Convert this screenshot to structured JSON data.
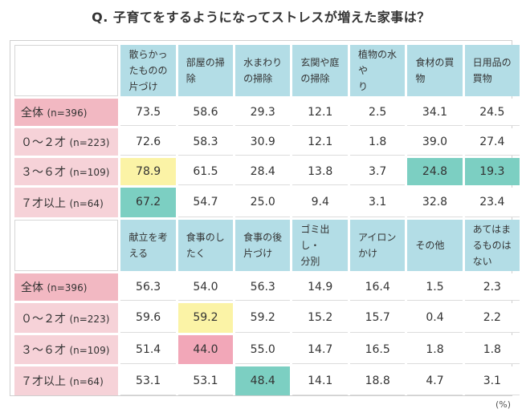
{
  "title": "Q. 子育てをするようになってストレスが増えた家事は？",
  "unit": "(%)",
  "chart_data": {
    "type": "table",
    "row_labels": [
      {
        "label": "全体",
        "n": "(n=396)"
      },
      {
        "label": "０～２才",
        "n": "(n=223)"
      },
      {
        "label": "３～６才",
        "n": "(n=109)"
      },
      {
        "label": "７才以上",
        "n": "(n=64)"
      }
    ],
    "tables": [
      {
        "headers": [
          [
            "散らかっ",
            "たものの",
            "片づけ"
          ],
          [
            "部屋の掃",
            "除"
          ],
          [
            "水まわり",
            "の掃除"
          ],
          [
            "玄関や庭",
            "の掃除"
          ],
          [
            "植物の水や",
            "り"
          ],
          [
            "食材の買",
            "物"
          ],
          [
            "日用品の",
            "買物"
          ]
        ],
        "rows": [
          [
            "73.5",
            "58.6",
            "29.3",
            "12.1",
            "2.5",
            "34.1",
            "24.5"
          ],
          [
            "72.6",
            "58.3",
            "30.9",
            "12.1",
            "1.8",
            "39.0",
            "27.4"
          ],
          [
            "78.9",
            "61.5",
            "28.4",
            "13.8",
            "3.7",
            "24.8",
            "19.3"
          ],
          [
            "67.2",
            "54.7",
            "25.0",
            "9.4",
            "3.1",
            "32.8",
            "23.4"
          ]
        ],
        "highlights": [
          {
            "row": 2,
            "col": 0,
            "color": "#fbf3a6"
          },
          {
            "row": 2,
            "col": 5,
            "color": "#7ccfc2"
          },
          {
            "row": 2,
            "col": 6,
            "color": "#7ccfc2"
          },
          {
            "row": 3,
            "col": 0,
            "color": "#7ccfc2"
          }
        ]
      },
      {
        "headers": [
          [
            "献立を考",
            "える"
          ],
          [
            "食事のし",
            "たく"
          ],
          [
            "食事の後",
            "片づけ"
          ],
          [
            "ゴミ出し・",
            "分別"
          ],
          [
            "アイロン",
            "かけ"
          ],
          [
            "その他"
          ],
          [
            "あてはま",
            "るものは",
            "ない"
          ]
        ],
        "rows": [
          [
            "56.3",
            "54.0",
            "56.3",
            "14.9",
            "16.4",
            "1.5",
            "2.3"
          ],
          [
            "59.6",
            "59.2",
            "59.2",
            "15.2",
            "15.7",
            "0.4",
            "2.2"
          ],
          [
            "51.4",
            "44.0",
            "55.0",
            "14.7",
            "16.5",
            "1.8",
            "1.8"
          ],
          [
            "53.1",
            "53.1",
            "48.4",
            "14.1",
            "18.8",
            "4.7",
            "3.1"
          ]
        ],
        "highlights": [
          {
            "row": 1,
            "col": 1,
            "color": "#fbf3a6"
          },
          {
            "row": 2,
            "col": 1,
            "color": "#f2a7b8"
          },
          {
            "row": 3,
            "col": 2,
            "color": "#7ccfc2"
          }
        ]
      }
    ],
    "colors": {
      "header_bg": "#b3dde6",
      "row_label_bg": "#f6d2d8",
      "row_label_first_bg": "#f2b8c2"
    }
  }
}
